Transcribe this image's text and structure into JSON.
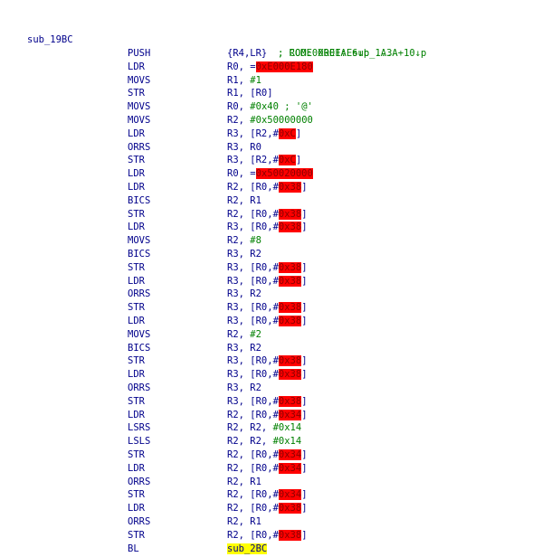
{
  "function": {
    "label": "sub_19BC",
    "xrefs": [
      "; CODE XREF: sub_1A3A+10↓p",
      "; ROM:00001AE6↓p ..."
    ]
  },
  "instructions": [
    {
      "mnemonic": "PUSH",
      "operands": [
        {
          "t": "{R4,LR}"
        }
      ]
    },
    {
      "mnemonic": "LDR",
      "operands": [
        {
          "t": "R0, ="
        },
        {
          "t": "0xE000E180",
          "s": "hl"
        }
      ]
    },
    {
      "mnemonic": "MOVS",
      "operands": [
        {
          "t": "R1, "
        },
        {
          "t": "#1",
          "s": "num"
        }
      ]
    },
    {
      "mnemonic": "STR",
      "operands": [
        {
          "t": "R1, [R0]"
        }
      ]
    },
    {
      "mnemonic": "MOVS",
      "operands": [
        {
          "t": "R0, "
        },
        {
          "t": "#0x40 ; '@'",
          "s": "num"
        }
      ]
    },
    {
      "mnemonic": "MOVS",
      "operands": [
        {
          "t": "R2, "
        },
        {
          "t": "#0x50000000",
          "s": "num"
        }
      ]
    },
    {
      "mnemonic": "LDR",
      "operands": [
        {
          "t": "R3, [R2,#"
        },
        {
          "t": "0xC",
          "s": "hl"
        },
        {
          "t": "]"
        }
      ]
    },
    {
      "mnemonic": "ORRS",
      "operands": [
        {
          "t": "R3, R0"
        }
      ]
    },
    {
      "mnemonic": "STR",
      "operands": [
        {
          "t": "R3, [R2,#"
        },
        {
          "t": "0xC",
          "s": "hl"
        },
        {
          "t": "]"
        }
      ]
    },
    {
      "mnemonic": "LDR",
      "operands": [
        {
          "t": "R0, ="
        },
        {
          "t": "0x50020000",
          "s": "hl"
        }
      ]
    },
    {
      "mnemonic": "LDR",
      "operands": [
        {
          "t": "R2, [R0,#"
        },
        {
          "t": "0x38",
          "s": "hl"
        },
        {
          "t": "]"
        }
      ]
    },
    {
      "mnemonic": "BICS",
      "operands": [
        {
          "t": "R2, R1"
        }
      ]
    },
    {
      "mnemonic": "STR",
      "operands": [
        {
          "t": "R2, [R0,#"
        },
        {
          "t": "0x38",
          "s": "hl"
        },
        {
          "t": "]"
        }
      ]
    },
    {
      "mnemonic": "LDR",
      "operands": [
        {
          "t": "R3, [R0,#"
        },
        {
          "t": "0x38",
          "s": "hl"
        },
        {
          "t": "]"
        }
      ]
    },
    {
      "mnemonic": "MOVS",
      "operands": [
        {
          "t": "R2, "
        },
        {
          "t": "#8",
          "s": "num"
        }
      ]
    },
    {
      "mnemonic": "BICS",
      "operands": [
        {
          "t": "R3, R2"
        }
      ]
    },
    {
      "mnemonic": "STR",
      "operands": [
        {
          "t": "R3, [R0,#"
        },
        {
          "t": "0x38",
          "s": "hl"
        },
        {
          "t": "]"
        }
      ]
    },
    {
      "mnemonic": "LDR",
      "operands": [
        {
          "t": "R3, [R0,#"
        },
        {
          "t": "0x38",
          "s": "hl"
        },
        {
          "t": "]"
        }
      ]
    },
    {
      "mnemonic": "ORRS",
      "operands": [
        {
          "t": "R3, R2"
        }
      ]
    },
    {
      "mnemonic": "STR",
      "operands": [
        {
          "t": "R3, [R0,#"
        },
        {
          "t": "0x38",
          "s": "hl"
        },
        {
          "t": "]"
        }
      ]
    },
    {
      "mnemonic": "LDR",
      "operands": [
        {
          "t": "R3, [R0,#"
        },
        {
          "t": "0x38",
          "s": "hl"
        },
        {
          "t": "]"
        }
      ]
    },
    {
      "mnemonic": "MOVS",
      "operands": [
        {
          "t": "R2, "
        },
        {
          "t": "#2",
          "s": "num"
        }
      ]
    },
    {
      "mnemonic": "BICS",
      "operands": [
        {
          "t": "R3, R2"
        }
      ]
    },
    {
      "mnemonic": "STR",
      "operands": [
        {
          "t": "R3, [R0,#"
        },
        {
          "t": "0x38",
          "s": "hl"
        },
        {
          "t": "]"
        }
      ]
    },
    {
      "mnemonic": "LDR",
      "operands": [
        {
          "t": "R3, [R0,#"
        },
        {
          "t": "0x38",
          "s": "hl"
        },
        {
          "t": "]"
        }
      ]
    },
    {
      "mnemonic": "ORRS",
      "operands": [
        {
          "t": "R3, R2"
        }
      ]
    },
    {
      "mnemonic": "STR",
      "operands": [
        {
          "t": "R3, [R0,#"
        },
        {
          "t": "0x38",
          "s": "hl"
        },
        {
          "t": "]"
        }
      ]
    },
    {
      "mnemonic": "LDR",
      "operands": [
        {
          "t": "R2, [R0,#"
        },
        {
          "t": "0x34",
          "s": "hl"
        },
        {
          "t": "]"
        }
      ]
    },
    {
      "mnemonic": "LSRS",
      "operands": [
        {
          "t": "R2, R2, "
        },
        {
          "t": "#0x14",
          "s": "num"
        }
      ]
    },
    {
      "mnemonic": "LSLS",
      "operands": [
        {
          "t": "R2, R2, "
        },
        {
          "t": "#0x14",
          "s": "num"
        }
      ]
    },
    {
      "mnemonic": "STR",
      "operands": [
        {
          "t": "R2, [R0,#"
        },
        {
          "t": "0x34",
          "s": "hl"
        },
        {
          "t": "]"
        }
      ]
    },
    {
      "mnemonic": "LDR",
      "operands": [
        {
          "t": "R2, [R0,#"
        },
        {
          "t": "0x34",
          "s": "hl"
        },
        {
          "t": "]"
        }
      ]
    },
    {
      "mnemonic": "ORRS",
      "operands": [
        {
          "t": "R2, R1"
        }
      ]
    },
    {
      "mnemonic": "STR",
      "operands": [
        {
          "t": "R2, [R0,#"
        },
        {
          "t": "0x34",
          "s": "hl"
        },
        {
          "t": "]"
        }
      ]
    },
    {
      "mnemonic": "LDR",
      "operands": [
        {
          "t": "R2, [R0,#"
        },
        {
          "t": "0x38",
          "s": "hl"
        },
        {
          "t": "]"
        }
      ]
    },
    {
      "mnemonic": "ORRS",
      "operands": [
        {
          "t": "R2, R1"
        }
      ]
    },
    {
      "mnemonic": "STR",
      "operands": [
        {
          "t": "R2, [R0,#"
        },
        {
          "t": "0x38",
          "s": "hl"
        },
        {
          "t": "]"
        }
      ]
    },
    {
      "mnemonic": "BL",
      "operands": [
        {
          "t": "sub_2BC",
          "s": "yl"
        }
      ]
    }
  ],
  "colors": {
    "highlight_red": "#ff0000",
    "highlight_yellow": "#ffff00",
    "mnemonic": "#00008b",
    "comment": "#008000"
  }
}
